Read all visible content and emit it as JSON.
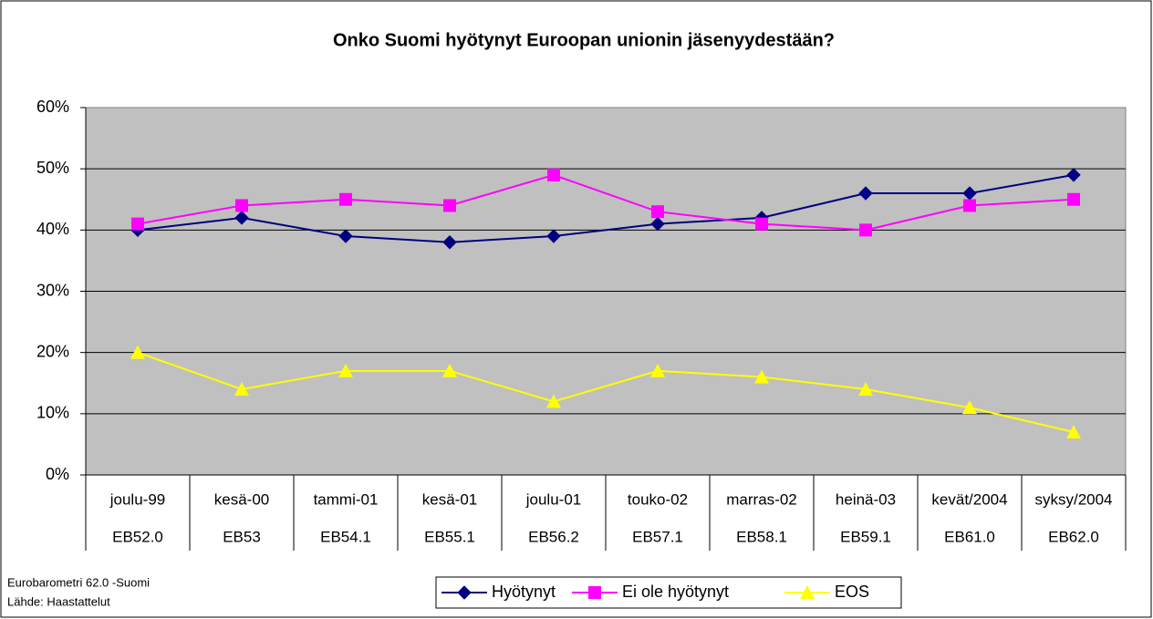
{
  "chart_data": {
    "type": "line",
    "title": "Onko Suomi hyötynyt Euroopan unionin jäsenyydestään?",
    "categories": [
      "joulu-99",
      "kesä-00",
      "tammi-01",
      "kesä-01",
      "joulu-01",
      "touko-02",
      "marras-02",
      "heinä-03",
      "kevät/2004",
      "syksy/2004"
    ],
    "category_codes": [
      "EB52.0",
      "EB53",
      "EB54.1",
      "EB55.1",
      "EB56.2",
      "EB57.1",
      "EB58.1",
      "EB59.1",
      "EB61.0",
      "EB62.0"
    ],
    "series": [
      {
        "name": "Hyötynyt",
        "color": "#000080",
        "marker": "diamond",
        "values": [
          40,
          42,
          39,
          38,
          39,
          41,
          42,
          46,
          46,
          49
        ]
      },
      {
        "name": "Ei ole hyötynyt",
        "color": "#FF00FF",
        "marker": "square",
        "values": [
          41,
          44,
          45,
          44,
          49,
          43,
          41,
          40,
          44,
          45
        ]
      },
      {
        "name": "EOS",
        "color": "#FFFF00",
        "marker": "triangle",
        "values": [
          20,
          14,
          17,
          17,
          12,
          17,
          16,
          14,
          11,
          7
        ]
      }
    ],
    "ylim": [
      0,
      60
    ],
    "yticks": [
      {
        "value": 0,
        "label": "0%"
      },
      {
        "value": 10,
        "label": "10%"
      },
      {
        "value": 20,
        "label": "20%"
      },
      {
        "value": 30,
        "label": "30%"
      },
      {
        "value": 40,
        "label": "40%"
      },
      {
        "value": 50,
        "label": "50%"
      },
      {
        "value": 60,
        "label": "60%"
      }
    ],
    "grid": true,
    "legend": "bottom",
    "source": [
      "Eurobarometri 62.0 -Suomi",
      "Lähde: Haastattelut"
    ]
  }
}
